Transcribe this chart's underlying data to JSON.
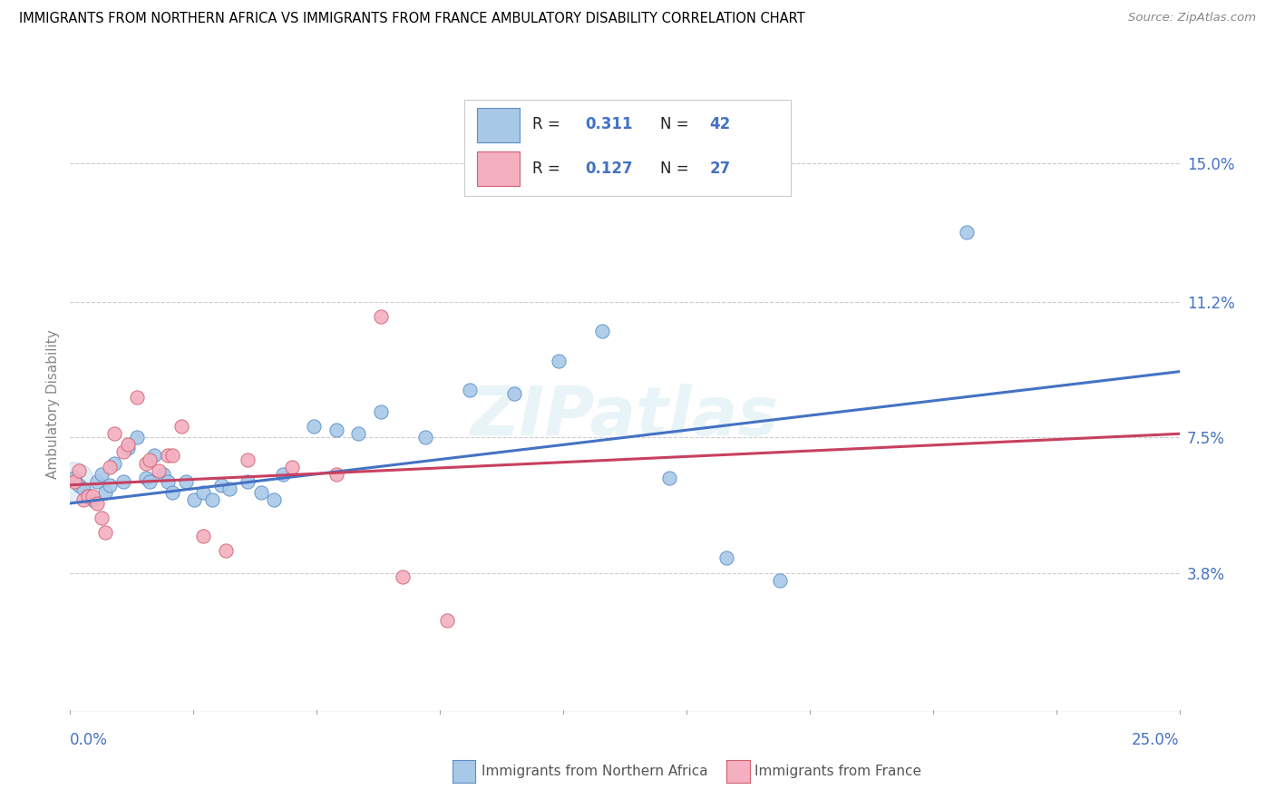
{
  "title": "IMMIGRANTS FROM NORTHERN AFRICA VS IMMIGRANTS FROM FRANCE AMBULATORY DISABILITY CORRELATION CHART",
  "source": "Source: ZipAtlas.com",
  "ylabel": "Ambulatory Disability",
  "yticks": [
    0.038,
    0.075,
    0.112,
    0.15
  ],
  "ytick_labels": [
    "3.8%",
    "7.5%",
    "11.2%",
    "15.0%"
  ],
  "xmin": 0.0,
  "xmax": 0.25,
  "ymin": 0.0,
  "ymax": 0.168,
  "blue_color": "#A8C8E8",
  "blue_edge": "#5B8EC8",
  "pink_color": "#F4B0C0",
  "pink_edge": "#D06070",
  "blue_line_color": "#4472C4",
  "pink_line_color": "#C84060",
  "R_blue": "0.311",
  "N_blue": "42",
  "R_pink": "0.127",
  "N_pink": "27",
  "blue_points": [
    [
      0.001,
      0.064
    ],
    [
      0.002,
      0.062
    ],
    [
      0.003,
      0.061
    ],
    [
      0.004,
      0.059
    ],
    [
      0.005,
      0.058
    ],
    [
      0.006,
      0.063
    ],
    [
      0.007,
      0.065
    ],
    [
      0.008,
      0.06
    ],
    [
      0.009,
      0.062
    ],
    [
      0.01,
      0.068
    ],
    [
      0.012,
      0.063
    ],
    [
      0.013,
      0.072
    ],
    [
      0.015,
      0.075
    ],
    [
      0.017,
      0.064
    ],
    [
      0.018,
      0.063
    ],
    [
      0.019,
      0.07
    ],
    [
      0.021,
      0.065
    ],
    [
      0.022,
      0.063
    ],
    [
      0.023,
      0.06
    ],
    [
      0.026,
      0.063
    ],
    [
      0.028,
      0.058
    ],
    [
      0.03,
      0.06
    ],
    [
      0.032,
      0.058
    ],
    [
      0.034,
      0.062
    ],
    [
      0.036,
      0.061
    ],
    [
      0.04,
      0.063
    ],
    [
      0.043,
      0.06
    ],
    [
      0.046,
      0.058
    ],
    [
      0.048,
      0.065
    ],
    [
      0.055,
      0.078
    ],
    [
      0.06,
      0.077
    ],
    [
      0.065,
      0.076
    ],
    [
      0.07,
      0.082
    ],
    [
      0.08,
      0.075
    ],
    [
      0.09,
      0.088
    ],
    [
      0.1,
      0.087
    ],
    [
      0.11,
      0.096
    ],
    [
      0.12,
      0.104
    ],
    [
      0.135,
      0.064
    ],
    [
      0.148,
      0.042
    ],
    [
      0.16,
      0.036
    ],
    [
      0.202,
      0.131
    ]
  ],
  "pink_points": [
    [
      0.001,
      0.063
    ],
    [
      0.002,
      0.066
    ],
    [
      0.003,
      0.058
    ],
    [
      0.004,
      0.059
    ],
    [
      0.005,
      0.059
    ],
    [
      0.006,
      0.057
    ],
    [
      0.007,
      0.053
    ],
    [
      0.008,
      0.049
    ],
    [
      0.009,
      0.067
    ],
    [
      0.01,
      0.076
    ],
    [
      0.012,
      0.071
    ],
    [
      0.013,
      0.073
    ],
    [
      0.015,
      0.086
    ],
    [
      0.017,
      0.068
    ],
    [
      0.018,
      0.069
    ],
    [
      0.02,
      0.066
    ],
    [
      0.022,
      0.07
    ],
    [
      0.023,
      0.07
    ],
    [
      0.025,
      0.078
    ],
    [
      0.03,
      0.048
    ],
    [
      0.035,
      0.044
    ],
    [
      0.04,
      0.069
    ],
    [
      0.05,
      0.067
    ],
    [
      0.06,
      0.065
    ],
    [
      0.07,
      0.108
    ],
    [
      0.075,
      0.037
    ],
    [
      0.085,
      0.025
    ]
  ],
  "blue_line_x": [
    0.0,
    0.25
  ],
  "blue_line_y": [
    0.057,
    0.093
  ],
  "pink_line_x": [
    0.0,
    0.25
  ],
  "pink_line_y": [
    0.062,
    0.076
  ],
  "watermark": "ZIPatlas",
  "marker_size": 120,
  "cluster_alpha": 0.3
}
